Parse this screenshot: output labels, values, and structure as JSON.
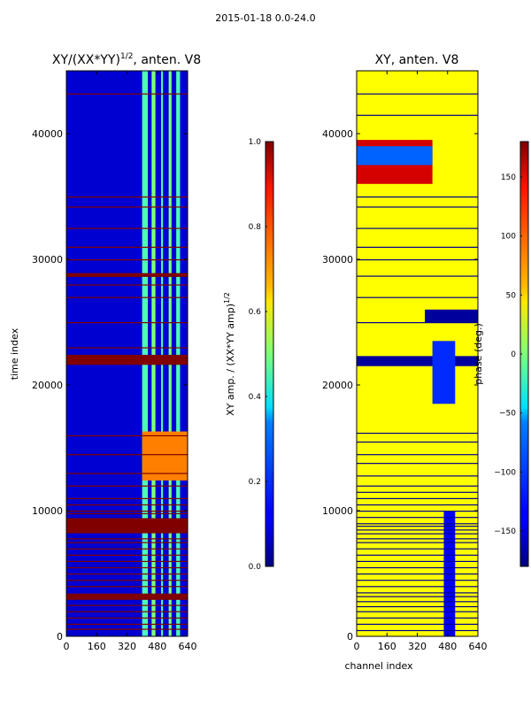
{
  "suptitle": "2015-01-18 0.0-24.0",
  "chart_data": [
    {
      "type": "heatmap",
      "title": "XY/(XX*YY)^1/2, anten. V8",
      "title_main": "XY/(XX*YY)",
      "title_exp": "1/2",
      "title_suffix": ", anten. V8",
      "xlabel": "",
      "ylabel": "time index",
      "xlim": [
        0,
        640
      ],
      "ylim": [
        0,
        45000
      ],
      "xticks": [
        0,
        160,
        320,
        480,
        640
      ],
      "yticks": [
        0,
        10000,
        20000,
        30000,
        40000
      ],
      "colormap": "jet",
      "colorbar": {
        "label_main": "XY amp. / (XX*YY amp)",
        "label_exp": "1/2",
        "range": [
          0.0,
          1.0
        ],
        "ticks": [
          0.0,
          0.2,
          0.4,
          0.6,
          0.8,
          1.0
        ],
        "tick_labels": [
          "0.0",
          "0.2",
          "0.4",
          "0.6",
          "0.8",
          "1.0"
        ]
      },
      "background_value": 0.08,
      "vertical_bands": [
        {
          "x0": 400,
          "x1": 430,
          "value": 0.45
        },
        {
          "x0": 450,
          "x1": 470,
          "value": 0.5
        },
        {
          "x0": 500,
          "x1": 510,
          "value": 0.45
        },
        {
          "x0": 540,
          "x1": 555,
          "value": 0.5
        },
        {
          "x0": 580,
          "x1": 600,
          "value": 0.45
        }
      ],
      "row_blocks": [
        {
          "y0": 21600,
          "y1": 22400,
          "value": 1.0
        },
        {
          "y0": 8200,
          "y1": 9400,
          "value": 1.0
        },
        {
          "y0": 2900,
          "y1": 3400,
          "value": 1.0
        },
        {
          "y0": 28600,
          "y1": 28900,
          "value": 1.0
        },
        {
          "y0": 12400,
          "y1": 16300,
          "value": 0.75,
          "x0": 400,
          "x1": 640
        }
      ],
      "row_lines": [
        43200,
        35000,
        34200,
        32500,
        31000,
        30000,
        28000,
        27000,
        25000,
        23000,
        16000,
        14500,
        13000,
        12000,
        11000,
        10500,
        10000,
        9800,
        7800,
        7500,
        7000,
        6500,
        6000,
        5500,
        5000,
        4500,
        4000,
        2500,
        2000,
        1500,
        1000,
        600
      ],
      "row_line_value": 1.0
    },
    {
      "type": "heatmap",
      "title": "XY, anten. V8",
      "xlabel": "channel index",
      "ylabel": "",
      "xlim": [
        0,
        640
      ],
      "ylim": [
        0,
        45000
      ],
      "xticks": [
        0,
        160,
        320,
        480,
        640
      ],
      "yticks": [
        0,
        10000,
        20000,
        30000,
        40000
      ],
      "colormap": "jet",
      "colorbar": {
        "label_main": "phase (deg.)",
        "range": [
          -180,
          180
        ],
        "ticks": [
          -150,
          -100,
          -50,
          0,
          50,
          100,
          150
        ],
        "tick_labels": [
          "−150",
          "−100",
          "−50",
          "0",
          "50",
          "100",
          "150"
        ]
      },
      "background_value": 45,
      "row_blocks": [
        {
          "y0": 21500,
          "y1": 22300,
          "value": -170
        },
        {
          "y0": 36000,
          "y1": 39500,
          "value": 150,
          "x0": 0,
          "x1": 400
        },
        {
          "y0": 37500,
          "y1": 39000,
          "value": -100,
          "x0": 0,
          "x1": 400
        },
        {
          "y0": 25000,
          "y1": 26000,
          "value": -170,
          "x0": 360,
          "x1": 640
        },
        {
          "y0": 18500,
          "y1": 23500,
          "value": -120,
          "x0": 400,
          "x1": 520
        },
        {
          "y0": 0,
          "y1": 10000,
          "value": -140,
          "x0": 460,
          "x1": 520
        }
      ],
      "row_lines": [
        43200,
        41500,
        35000,
        34200,
        32500,
        31000,
        30000,
        28700,
        27000,
        25000,
        16200,
        15500,
        14500,
        13800,
        12800,
        12000,
        11500,
        11000,
        10500,
        10000,
        9500,
        9000,
        8800,
        8500,
        8200,
        7800,
        7500,
        7000,
        6500,
        6000,
        5500,
        5000,
        4500,
        4000,
        3500,
        3200,
        2800,
        2400,
        2000,
        1500,
        1000,
        500
      ],
      "row_line_value": -175
    }
  ]
}
